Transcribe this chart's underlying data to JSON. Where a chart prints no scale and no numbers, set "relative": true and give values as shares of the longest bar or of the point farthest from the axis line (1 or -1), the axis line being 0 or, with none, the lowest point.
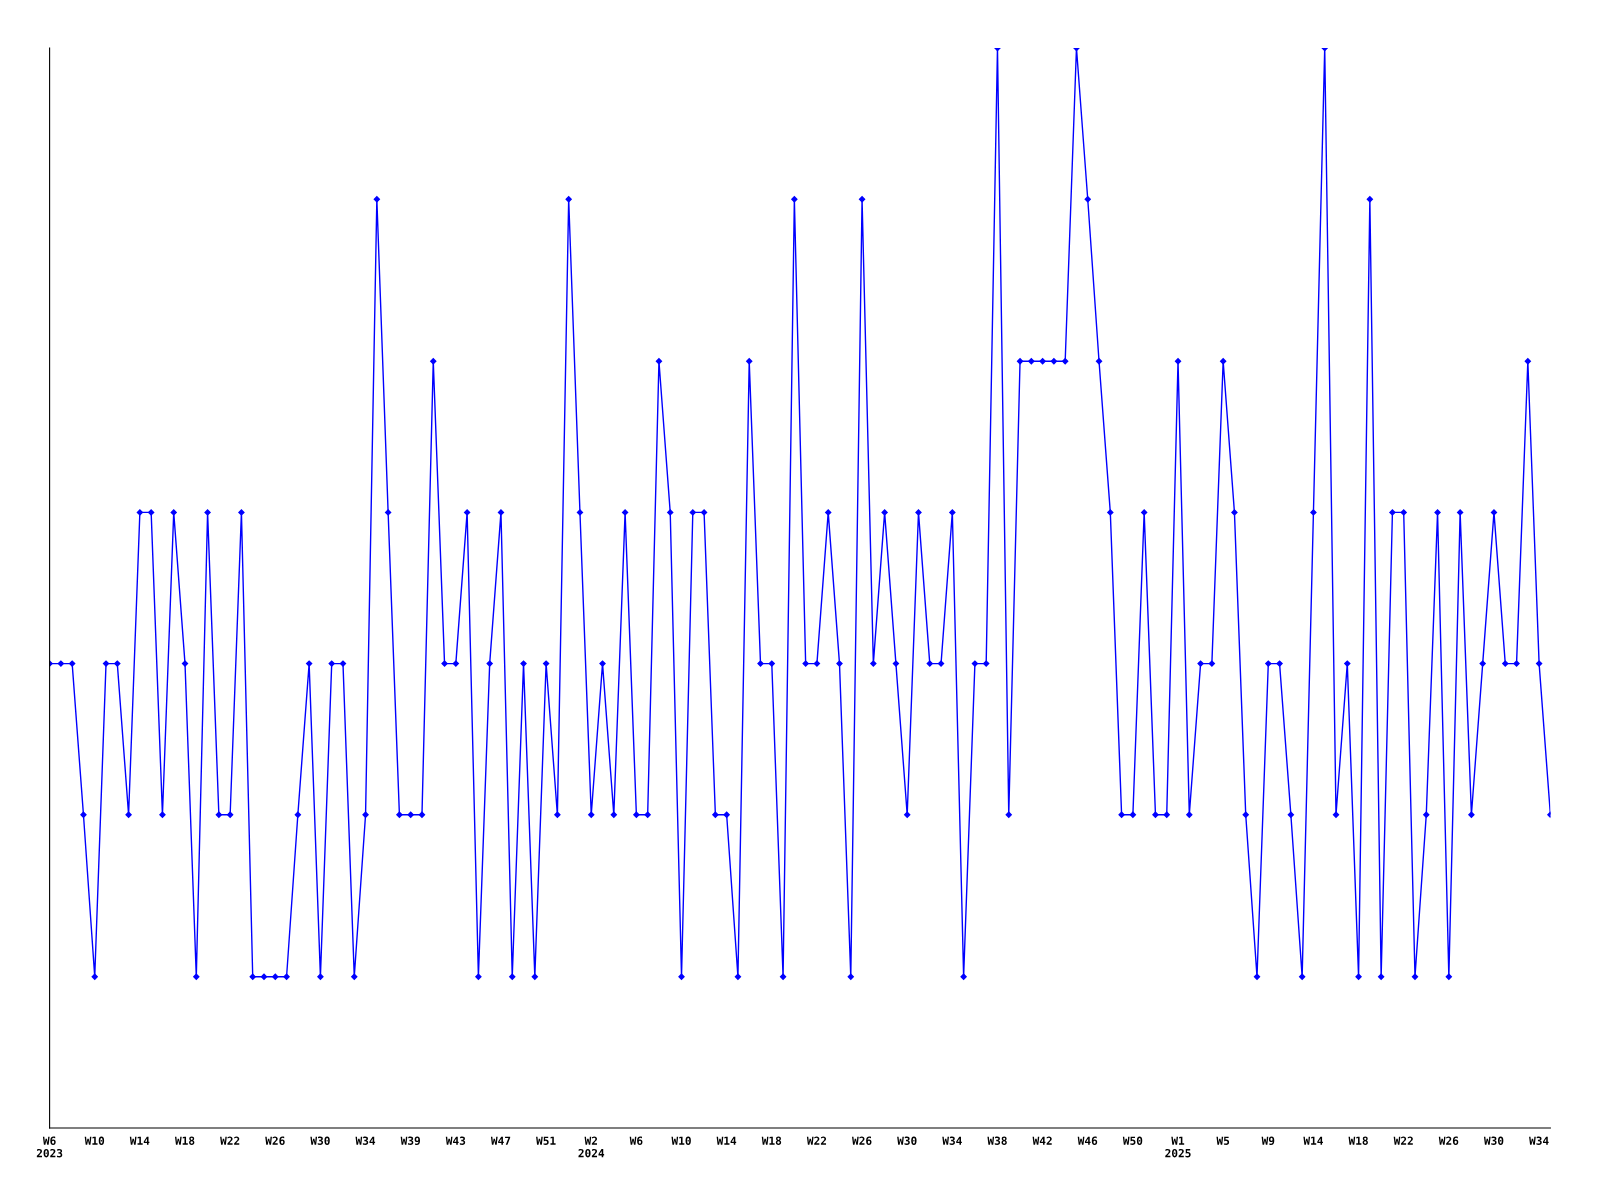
{
  "chart_data": {
    "type": "line",
    "relative": true,
    "marker": "diamond",
    "line_style": "solid",
    "grid": false,
    "categories": [
      "W6\n2023",
      null,
      null,
      null,
      "W10",
      null,
      null,
      null,
      "W14",
      null,
      null,
      null,
      "W18",
      null,
      null,
      null,
      "W22",
      null,
      null,
      null,
      "W26",
      null,
      null,
      null,
      "W30",
      null,
      null,
      null,
      "W34",
      null,
      null,
      null,
      "W39",
      null,
      null,
      null,
      "W43",
      null,
      null,
      null,
      "W47",
      null,
      null,
      null,
      "W51",
      null,
      null,
      null,
      "W2\n2024",
      null,
      null,
      null,
      "W6",
      null,
      null,
      null,
      "W10",
      null,
      null,
      null,
      "W14",
      null,
      null,
      null,
      "W18",
      null,
      null,
      null,
      "W22",
      null,
      null,
      null,
      "W26",
      null,
      null,
      null,
      "W30",
      null,
      null,
      null,
      "W34",
      null,
      null,
      null,
      "W38",
      null,
      null,
      null,
      "W42",
      null,
      null,
      null,
      "W46",
      null,
      null,
      null,
      "W50",
      null,
      null,
      null,
      "W1\n2025",
      null,
      null,
      null,
      "W5",
      null,
      null,
      null,
      "W9",
      null,
      null,
      null,
      "W14",
      null,
      null,
      null,
      "W18",
      null,
      null,
      null,
      "W22",
      null,
      null,
      null,
      "W26",
      null,
      null,
      null,
      "W30",
      null,
      null,
      null,
      "W34",
      null
    ],
    "series": [
      {
        "color": "#0000ff",
        "values": [
          0.43,
          0.43,
          0.43,
          0.29,
          0.14,
          0.43,
          0.43,
          0.29,
          0.57,
          0.57,
          0.29,
          0.57,
          0.43,
          0.14,
          0.57,
          0.29,
          0.29,
          0.57,
          0.14,
          0.14,
          0.14,
          0.14,
          0.29,
          0.43,
          0.14,
          0.43,
          0.43,
          0.14,
          0.29,
          0.86,
          0.57,
          0.29,
          0.29,
          0.29,
          0.71,
          0.43,
          0.43,
          0.57,
          0.14,
          0.43,
          0.57,
          0.14,
          0.43,
          0.14,
          0.43,
          0.29,
          0.86,
          0.57,
          0.29,
          0.43,
          0.29,
          0.57,
          0.29,
          0.29,
          0.71,
          0.57,
          0.14,
          0.57,
          0.57,
          0.29,
          0.29,
          0.14,
          0.71,
          0.43,
          0.43,
          0.14,
          0.86,
          0.43,
          0.43,
          0.57,
          0.43,
          0.14,
          0.86,
          0.43,
          0.57,
          0.43,
          0.29,
          0.57,
          0.43,
          0.43,
          0.57,
          0.14,
          0.43,
          0.43,
          1,
          0.29,
          0.71,
          0.71,
          0.71,
          0.71,
          0.71,
          1,
          0.86,
          0.71,
          0.57,
          0.29,
          0.29,
          0.57,
          0.29,
          0.29,
          0.71,
          0.29,
          0.43,
          0.43,
          0.71,
          0.57,
          0.29,
          0.14,
          0.43,
          0.43,
          0.29,
          0.14,
          0.57,
          1,
          0.29,
          0.43,
          0.14,
          0.86,
          0.14,
          0.57,
          0.57,
          0.14,
          0.29,
          0.57,
          0.14,
          0.57,
          0.29,
          0.43,
          0.57,
          0.43,
          0.43,
          0.71,
          0.43,
          0.29
        ]
      }
    ]
  }
}
